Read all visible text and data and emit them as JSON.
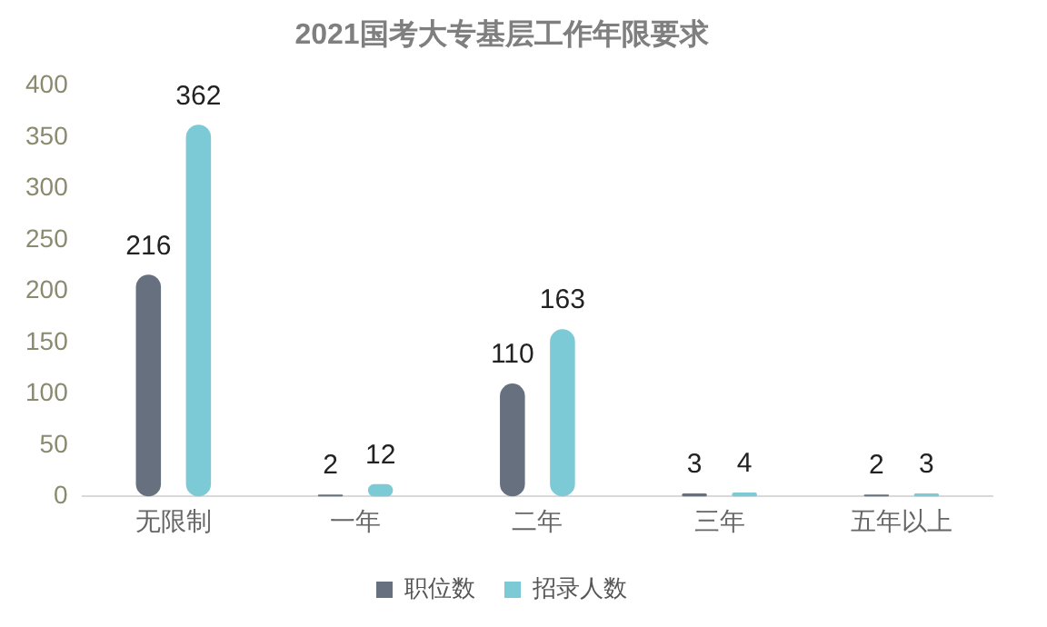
{
  "chart_data": {
    "type": "bar",
    "title": "2021国考大专基层工作年限要求",
    "categories": [
      "无限制",
      "一年",
      "二年",
      "三年",
      "五年以上"
    ],
    "series": [
      {
        "name": "职位数",
        "color": "#66707e",
        "values": [
          216,
          2,
          110,
          3,
          2
        ]
      },
      {
        "name": "招录人数",
        "color": "#7ccad6",
        "values": [
          362,
          12,
          163,
          4,
          3
        ]
      }
    ],
    "ylim": [
      0,
      400
    ],
    "yticks": [
      0,
      50,
      100,
      150,
      200,
      250,
      300,
      350,
      400
    ],
    "grid": false,
    "legend": "bottom",
    "data_labels": true
  }
}
